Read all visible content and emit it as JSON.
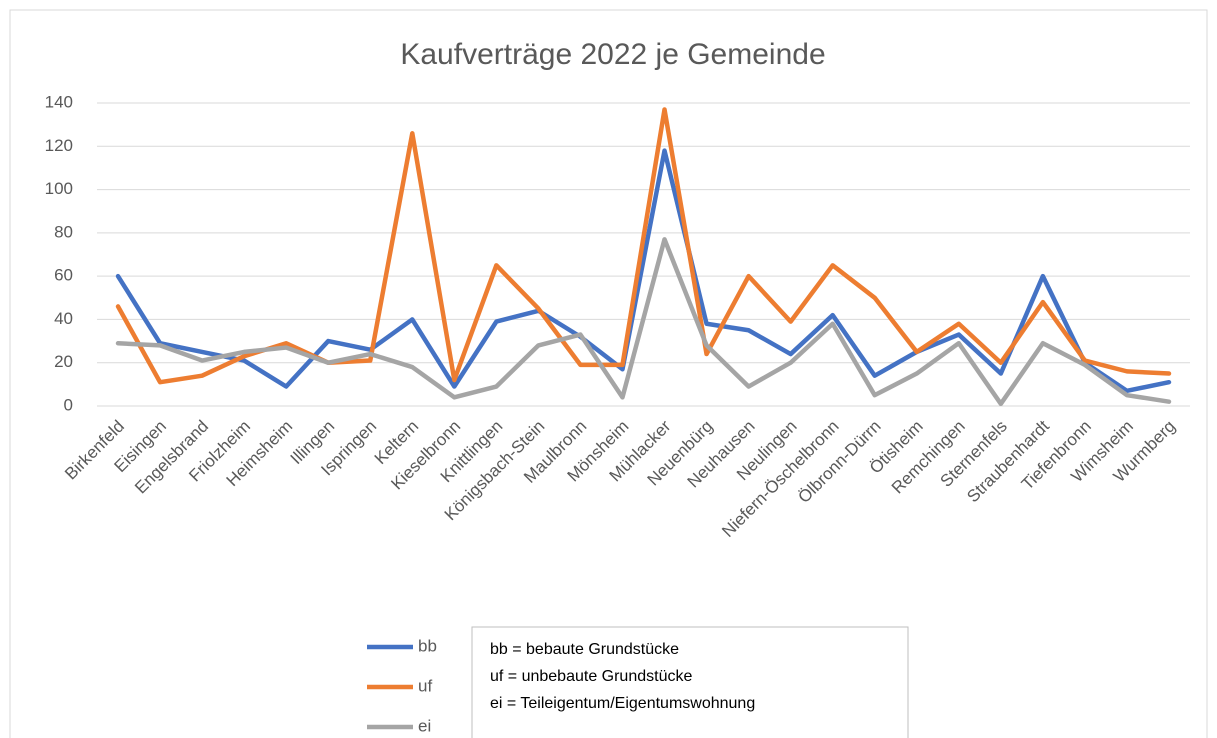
{
  "chart_data": {
    "type": "line",
    "title": "Kaufverträge 2022 je Gemeinde",
    "categories": [
      "Birkenfeld",
      "Eisingen",
      "Engelsbrand",
      "Friolzheim",
      "Heimsheim",
      "Illingen",
      "Ispringen",
      "Keltern",
      "Kieselbronn",
      "Knittlingen",
      "Königsbach-Stein",
      "Maulbronn",
      "Mönsheim",
      "Mühlacker",
      "Neuenbürg",
      "Neuhausen",
      "Neulingen",
      "Niefern-Öschelbronn",
      "Ölbronn-Dürrn",
      "Ötisheim",
      "Remchingen",
      "Sternenfels",
      "Straubenhardt",
      "Tiefenbronn",
      "Wimsheim",
      "Wurmberg"
    ],
    "series": [
      {
        "name": "bb",
        "color": "#4472c4",
        "values": [
          60,
          29,
          25,
          21,
          9,
          30,
          26,
          40,
          9,
          39,
          44,
          32,
          17,
          118,
          38,
          35,
          24,
          42,
          14,
          25,
          33,
          15,
          60,
          20,
          7,
          11
        ]
      },
      {
        "name": "uf",
        "color": "#ed7d31",
        "values": [
          46,
          11,
          14,
          23,
          29,
          20,
          21,
          126,
          12,
          65,
          45,
          19,
          19,
          137,
          24,
          60,
          39,
          65,
          50,
          25,
          38,
          20,
          48,
          21,
          16,
          15
        ]
      },
      {
        "name": "ei",
        "color": "#a5a5a5",
        "values": [
          29,
          28,
          21,
          25,
          27,
          20,
          24,
          18,
          4,
          9,
          28,
          33,
          4,
          77,
          28,
          9,
          20,
          38,
          5,
          15,
          29,
          1,
          29,
          19,
          5,
          2
        ]
      }
    ],
    "ylim": [
      0,
      140
    ],
    "yticks": [
      0,
      20,
      40,
      60,
      80,
      100,
      120,
      140
    ],
    "grid": true,
    "legend": "bottom-left",
    "annotations": [
      "bb = bebaute Grundstücke",
      "uf = unbebaute Grundstücke",
      "ei = Teileigentum/Eigentumswohnung"
    ]
  }
}
